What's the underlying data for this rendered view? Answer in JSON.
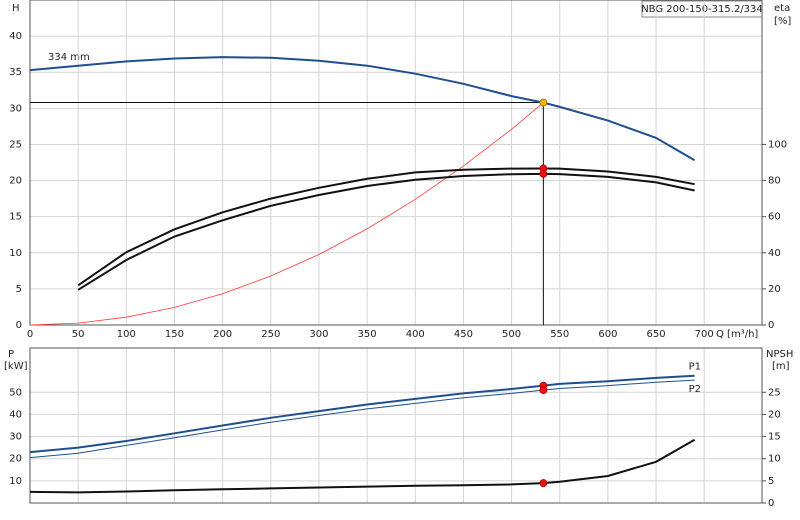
{
  "chart_data": [
    {
      "type": "line",
      "title": "NBG 200-150-315.2/334",
      "annotation": "334 mm",
      "ylabel": "H",
      "y2label": "eta",
      "y2unit": "[%]",
      "xlabel": "Q [m³/h]",
      "x": [
        0,
        50,
        100,
        150,
        200,
        250,
        300,
        350,
        400,
        450,
        500,
        533,
        550,
        600,
        650,
        690
      ],
      "xlim": [
        0,
        760
      ],
      "xticks": [
        0,
        50,
        100,
        150,
        200,
        250,
        300,
        350,
        400,
        450,
        500,
        550,
        600,
        650,
        700
      ],
      "ylim": [
        0,
        45
      ],
      "yticks": [
        0,
        5,
        10,
        15,
        20,
        25,
        30,
        35,
        40
      ],
      "y2lim": [
        0,
        180
      ],
      "y2ticks": [
        0,
        20,
        40,
        60,
        80,
        100
      ],
      "grid": true,
      "operating_x": 533,
      "series": [
        {
          "color": "#1f4f8f",
          "width": 2,
          "values": [
            35.3,
            35.9,
            36.5,
            36.9,
            37.1,
            37.0,
            36.6,
            35.9,
            34.8,
            33.4,
            31.7,
            30.8,
            30.2,
            28.3,
            25.9,
            22.8
          ],
          "marker": "#f5b800"
        },
        {
          "color": "#ff3b3b",
          "width": 0.8,
          "values": [
            0,
            0.27,
            1.08,
            2.44,
            4.34,
            6.78,
            9.76,
            13.3,
            17.4,
            22.0,
            27.1,
            30.8,
            null,
            null,
            null,
            null
          ]
        },
        {
          "color": "#111111",
          "width": 2,
          "axis": "y2",
          "values": [
            null,
            22,
            40.3,
            53,
            62.4,
            70,
            76,
            81,
            84.5,
            86,
            86.6,
            86.7,
            86.6,
            85,
            82,
            78
          ],
          "marker": "#ee1111"
        },
        {
          "color": "#111111",
          "width": 2,
          "axis": "y2",
          "values": [
            null,
            19.5,
            36,
            49,
            58,
            66,
            72,
            77,
            80.5,
            82.5,
            83.5,
            83.7,
            83.6,
            82,
            79,
            74.5
          ],
          "marker": "#ee1111"
        }
      ]
    },
    {
      "type": "line",
      "ylabel": "P",
      "yunit": "[kW]",
      "y2label": "NPSH",
      "y2unit": "[m]",
      "x": [
        0,
        50,
        100,
        150,
        200,
        250,
        300,
        350,
        400,
        450,
        500,
        533,
        550,
        600,
        650,
        690
      ],
      "xlim": [
        0,
        760
      ],
      "xticks": [
        0,
        50,
        100,
        150,
        200,
        250,
        300,
        350,
        400,
        450,
        500,
        550,
        600,
        650,
        700
      ],
      "ylim": [
        0,
        70
      ],
      "yticks": [
        10,
        20,
        30,
        40,
        50
      ],
      "y2lim": [
        0,
        35
      ],
      "y2ticks": [
        0,
        5,
        10,
        15,
        20,
        25
      ],
      "grid": true,
      "operating_x": 533,
      "series": [
        {
          "name": "P1",
          "color": "#1f4f8f",
          "width": 2,
          "values": [
            23,
            25,
            28,
            31.5,
            35,
            38.5,
            41.5,
            44.5,
            47,
            49.5,
            51.5,
            53,
            53.8,
            55,
            56.5,
            57.5
          ],
          "marker": "#ee1111"
        },
        {
          "name": "P2",
          "color": "#1f4f8f",
          "width": 1,
          "values": [
            20.5,
            22.5,
            26,
            29.5,
            33,
            36.5,
            39.5,
            42.5,
            45,
            47.5,
            49.5,
            51,
            51.7,
            53,
            54.5,
            55.5
          ],
          "marker": "#ee1111"
        },
        {
          "color": "#111111",
          "width": 2,
          "axis": "y2",
          "values": [
            2.5,
            2.4,
            2.6,
            2.9,
            3.1,
            3.3,
            3.5,
            3.7,
            3.9,
            4.0,
            4.2,
            4.5,
            4.8,
            6.1,
            9.3,
            14.3
          ],
          "marker": "#ee1111"
        }
      ]
    }
  ]
}
